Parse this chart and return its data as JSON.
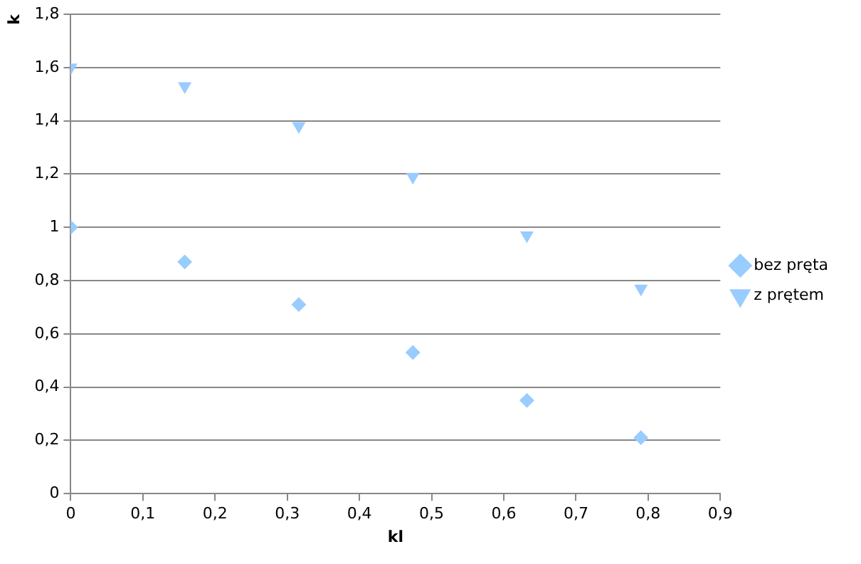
{
  "chart_data": {
    "type": "scatter",
    "xlabel": "kl",
    "ylabel": "k",
    "xlim": [
      0,
      0.9
    ],
    "xticks": [
      0,
      {
        "value": 0.1,
        "label": "0,1"
      },
      {
        "value": 0.2,
        "label": "0,2"
      },
      {
        "value": 0.3,
        "label": "0,3"
      },
      {
        "value": 0.4,
        "label": "0,4"
      },
      {
        "value": 0.5,
        "label": "0,5"
      },
      {
        "value": 0.6,
        "label": "0,6"
      },
      {
        "value": 0.7,
        "label": "0,7"
      },
      {
        "value": 0.8,
        "label": "0,8"
      },
      {
        "value": 0.9,
        "label": "0,9"
      }
    ],
    "ylim": [
      0,
      1.8
    ],
    "yticks": [
      0,
      {
        "value": 0.2,
        "label": "0,2"
      },
      {
        "value": 0.4,
        "label": "0,4"
      },
      {
        "value": 0.6,
        "label": "0,6"
      },
      {
        "value": 0.8,
        "label": "0,8"
      },
      1,
      {
        "value": 1.2,
        "label": "1,2"
      },
      {
        "value": 1.4,
        "label": "1,4"
      },
      {
        "value": 1.6,
        "label": "1,6"
      },
      {
        "value": 1.8,
        "label": "1,8"
      }
    ],
    "grid": "y",
    "legend": "right",
    "series": [
      {
        "name": "bez pręta",
        "color": "#99ccff",
        "marker": "diamond",
        "x": [
          0,
          0.158,
          0.316,
          0.474,
          0.632,
          0.79
        ],
        "values": [
          1.0,
          0.87,
          0.71,
          0.53,
          0.35,
          0.21
        ]
      },
      {
        "name": "z prętem",
        "color": "#99ccff",
        "marker": "triangle",
        "x": [
          0,
          0.158,
          0.316,
          0.474,
          0.632,
          0.79
        ],
        "values": [
          1.6,
          1.53,
          1.38,
          1.19,
          0.97,
          0.77
        ]
      }
    ]
  }
}
